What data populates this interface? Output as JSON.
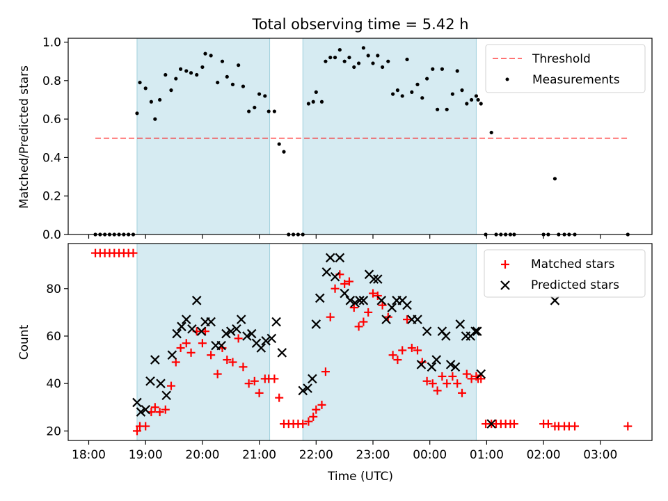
{
  "title": "Total observing time = 5.42 h",
  "colors": {
    "threshold": "#ff0000",
    "shade": "#add8e6",
    "matched": "#ff0000",
    "predicted": "#000000",
    "measurements": "#000000"
  },
  "chart_data": [
    {
      "type": "scatter",
      "ylabel": "Matched/Predicted stars",
      "xlabel": "",
      "ylim": [
        0,
        1.02
      ],
      "yticks": [
        0.0,
        0.2,
        0.4,
        0.6,
        0.8,
        1.0
      ],
      "ytick_labels": [
        "0.0",
        "0.2",
        "0.4",
        "0.6",
        "0.8",
        "1.0"
      ],
      "legend_position": "top-right",
      "legend": [
        "Threshold",
        "Measurements"
      ],
      "threshold": {
        "name": "Threshold",
        "value": 0.5,
        "x_range": [
          "18:07",
          "03:30"
        ],
        "style": "dashed"
      },
      "shaded_intervals": [
        [
          "18:51",
          "21:11"
        ],
        [
          "21:46",
          "00:49"
        ]
      ],
      "series": [
        {
          "name": "Measurements",
          "x": [
            "18:07",
            "18:12",
            "18:17",
            "18:22",
            "18:27",
            "18:32",
            "18:37",
            "18:42",
            "18:47",
            "18:51",
            "18:54",
            "19:00",
            "19:06",
            "19:10",
            "19:15",
            "19:21",
            "19:27",
            "19:32",
            "19:37",
            "19:43",
            "19:48",
            "19:54",
            "20:00",
            "20:03",
            "20:09",
            "20:16",
            "20:21",
            "20:26",
            "20:32",
            "20:38",
            "20:43",
            "20:49",
            "20:55",
            "21:00",
            "21:06",
            "21:10",
            "21:16",
            "21:21",
            "21:26",
            "21:31",
            "21:36",
            "21:41",
            "21:46",
            "21:52",
            "21:57",
            "22:00",
            "22:06",
            "22:10",
            "22:15",
            "22:20",
            "22:25",
            "22:30",
            "22:35",
            "22:40",
            "22:45",
            "22:50",
            "22:55",
            "23:00",
            "23:05",
            "23:10",
            "23:16",
            "23:21",
            "23:26",
            "23:31",
            "23:36",
            "23:41",
            "23:47",
            "23:52",
            "23:57",
            "00:03",
            "00:08",
            "00:13",
            "00:18",
            "00:24",
            "00:29",
            "00:34",
            "00:39",
            "00:44",
            "00:49",
            "00:51",
            "00:54",
            "00:59",
            "01:05",
            "01:10",
            "01:15",
            "01:20",
            "01:25",
            "01:29",
            "02:00",
            "02:05",
            "02:12",
            "02:16",
            "02:22",
            "02:27",
            "02:33",
            "03:29"
          ],
          "y": [
            0.0,
            0.0,
            0.0,
            0.0,
            0.0,
            0.0,
            0.0,
            0.0,
            0.0,
            0.63,
            0.79,
            0.76,
            0.69,
            0.6,
            0.7,
            0.83,
            0.75,
            0.81,
            0.86,
            0.85,
            0.84,
            0.83,
            0.87,
            0.94,
            0.93,
            0.79,
            0.9,
            0.82,
            0.78,
            0.88,
            0.77,
            0.64,
            0.66,
            0.73,
            0.72,
            0.64,
            0.64,
            0.47,
            0.43,
            0.0,
            0.0,
            0.0,
            0.0,
            0.68,
            0.69,
            0.74,
            0.69,
            0.9,
            0.92,
            0.92,
            0.96,
            0.9,
            0.92,
            0.87,
            0.89,
            0.97,
            0.93,
            0.89,
            0.93,
            0.87,
            0.9,
            0.73,
            0.75,
            0.72,
            0.91,
            0.74,
            0.78,
            0.71,
            0.81,
            0.86,
            0.65,
            0.86,
            0.65,
            0.73,
            0.85,
            0.75,
            0.68,
            0.7,
            0.72,
            0.7,
            0.68,
            0.0,
            0.53,
            0.0,
            0.0,
            0.0,
            0.0,
            0.0,
            0.0,
            0.0,
            0.29,
            0.0,
            0.0,
            0.0,
            0.0,
            0.0
          ]
        }
      ]
    },
    {
      "type": "scatter",
      "ylabel": "Count",
      "xlabel": "Time (UTC)",
      "ylim": [
        16,
        99
      ],
      "yticks": [
        20,
        40,
        60,
        80
      ],
      "ytick_labels": [
        "20",
        "40",
        "60",
        "80"
      ],
      "xtick_labels": [
        "18:00",
        "19:00",
        "20:00",
        "21:00",
        "22:00",
        "23:00",
        "00:00",
        "01:00",
        "02:00",
        "03:00"
      ],
      "legend_position": "top-right",
      "legend": [
        "Matched stars",
        "Predicted stars"
      ],
      "shaded_intervals": [
        [
          "18:51",
          "21:11"
        ],
        [
          "21:46",
          "00:49"
        ]
      ],
      "series": [
        {
          "name": "Matched stars",
          "x": [
            "18:07",
            "18:12",
            "18:17",
            "18:22",
            "18:27",
            "18:32",
            "18:37",
            "18:42",
            "18:47",
            "18:51",
            "18:54",
            "19:00",
            "19:06",
            "19:10",
            "19:15",
            "19:21",
            "19:27",
            "19:32",
            "19:37",
            "19:43",
            "19:48",
            "19:54",
            "20:00",
            "20:03",
            "20:09",
            "20:16",
            "20:21",
            "20:26",
            "20:32",
            "20:38",
            "20:43",
            "20:49",
            "20:55",
            "21:00",
            "21:06",
            "21:10",
            "21:16",
            "21:21",
            "21:26",
            "21:31",
            "21:36",
            "21:41",
            "21:46",
            "21:52",
            "21:57",
            "22:00",
            "22:06",
            "22:10",
            "22:15",
            "22:20",
            "22:25",
            "22:30",
            "22:35",
            "22:40",
            "22:45",
            "22:50",
            "22:55",
            "23:00",
            "23:05",
            "23:10",
            "23:16",
            "23:21",
            "23:26",
            "23:31",
            "23:36",
            "23:41",
            "23:47",
            "23:52",
            "23:57",
            "00:03",
            "00:08",
            "00:13",
            "00:18",
            "00:24",
            "00:29",
            "00:34",
            "00:39",
            "00:44",
            "00:49",
            "00:51",
            "00:54",
            "00:59",
            "01:05",
            "01:10",
            "01:15",
            "01:20",
            "01:25",
            "01:29",
            "02:00",
            "02:05",
            "02:12",
            "02:16",
            "02:22",
            "02:27",
            "02:33",
            "03:29"
          ],
          "y": [
            95,
            95,
            95,
            95,
            95,
            95,
            95,
            95,
            95,
            20,
            22,
            22,
            28,
            30,
            28,
            29,
            39,
            49,
            55,
            57,
            53,
            62,
            57,
            62,
            52,
            44,
            55,
            50,
            49,
            59,
            47,
            40,
            41,
            36,
            42,
            42,
            42,
            34,
            23,
            23,
            23,
            23,
            23,
            24,
            26,
            29,
            31,
            45,
            68,
            80,
            86,
            82,
            83,
            72,
            64,
            66,
            70,
            78,
            77,
            73,
            68,
            52,
            50,
            54,
            67,
            55,
            54,
            49,
            41,
            40,
            37,
            43,
            40,
            43,
            40,
            36,
            44,
            42,
            43,
            42,
            42,
            23,
            23,
            23,
            23,
            23,
            23,
            23,
            23,
            23,
            22,
            22,
            22,
            22,
            22,
            22
          ]
        },
        {
          "name": "Predicted stars",
          "x": [
            "18:51",
            "18:55",
            "19:00",
            "19:05",
            "19:10",
            "19:16",
            "19:22",
            "19:28",
            "19:33",
            "19:38",
            "19:43",
            "19:49",
            "19:54",
            "19:59",
            "20:03",
            "20:09",
            "20:14",
            "20:20",
            "20:25",
            "20:30",
            "20:36",
            "20:41",
            "20:47",
            "20:52",
            "20:57",
            "21:02",
            "21:07",
            "21:13",
            "21:18",
            "21:24",
            "21:46",
            "21:51",
            "21:56",
            "22:00",
            "22:04",
            "22:11",
            "22:15",
            "22:20",
            "22:25",
            "22:30",
            "22:36",
            "22:41",
            "22:46",
            "22:50",
            "22:56",
            "23:01",
            "23:05",
            "23:09",
            "23:14",
            "23:20",
            "23:25",
            "23:31",
            "23:36",
            "23:41",
            "23:47",
            "23:51",
            "23:57",
            "00:02",
            "00:07",
            "00:13",
            "00:17",
            "00:22",
            "00:27",
            "00:32",
            "00:38",
            "00:43",
            "00:48",
            "00:50",
            "00:54",
            "01:05",
            "02:12"
          ],
          "y": [
            32,
            28,
            29,
            41,
            50,
            40,
            35,
            52,
            61,
            64,
            67,
            63,
            75,
            62,
            66,
            66,
            56,
            56,
            61,
            62,
            63,
            67,
            60,
            61,
            57,
            55,
            58,
            59,
            66,
            53,
            37,
            38,
            42,
            65,
            76,
            87,
            93,
            85,
            93,
            78,
            75,
            74,
            75,
            75,
            86,
            84,
            84,
            75,
            67,
            72,
            75,
            75,
            73,
            67,
            67,
            48,
            62,
            47,
            50,
            62,
            60,
            48,
            47,
            65,
            60,
            60,
            62,
            62,
            44,
            23,
            75
          ]
        }
      ]
    }
  ]
}
